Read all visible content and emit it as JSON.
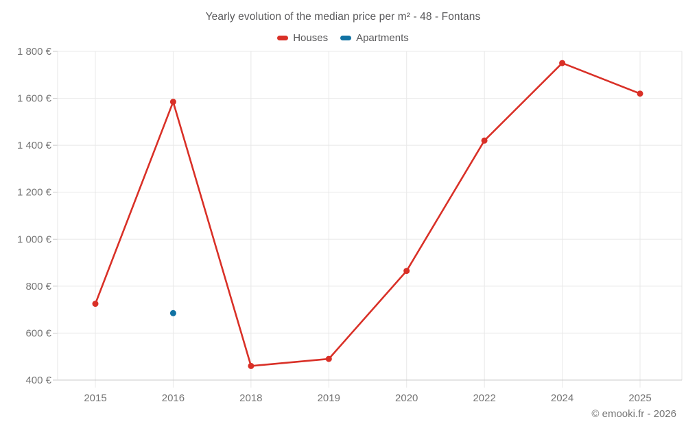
{
  "header": {
    "title": "Yearly evolution of the median price per m² - 48 - Fontans"
  },
  "footer": {
    "attribution": "© emooki.fr - 2026"
  },
  "chart_data": {
    "type": "line",
    "title": "Yearly evolution of the median price per m² - 48 - Fontans",
    "xlabel": "",
    "ylabel": "",
    "categories": [
      "2015",
      "2016",
      "2018",
      "2019",
      "2020",
      "2022",
      "2024",
      "2025"
    ],
    "series": [
      {
        "name": "Houses",
        "color": "#d93027",
        "points": [
          {
            "x": "2015",
            "y": 725
          },
          {
            "x": "2016",
            "y": 1585
          },
          {
            "x": "2018",
            "y": 460
          },
          {
            "x": "2019",
            "y": 490
          },
          {
            "x": "2020",
            "y": 865
          },
          {
            "x": "2022",
            "y": 1420
          },
          {
            "x": "2024",
            "y": 1750
          },
          {
            "x": "2025",
            "y": 1620
          }
        ]
      },
      {
        "name": "Apartments",
        "color": "#1172a3",
        "points": [
          {
            "x": "2016",
            "y": 685
          }
        ]
      }
    ],
    "ylim": [
      400,
      1800
    ],
    "y_tick_step": 200,
    "y_tick_labels": [
      "400 €",
      "600 €",
      "800 €",
      "1 000 €",
      "1 200 €",
      "1 400 €",
      "1 600 €",
      "1 800 €"
    ],
    "grid": true,
    "legend_position": "top",
    "colors": {
      "gridline": "#e8e8e8",
      "axis_line": "#c9c9c9",
      "border_line": "#e4e4e4",
      "tick_label": "#757575",
      "title_text": "#58585a"
    }
  }
}
